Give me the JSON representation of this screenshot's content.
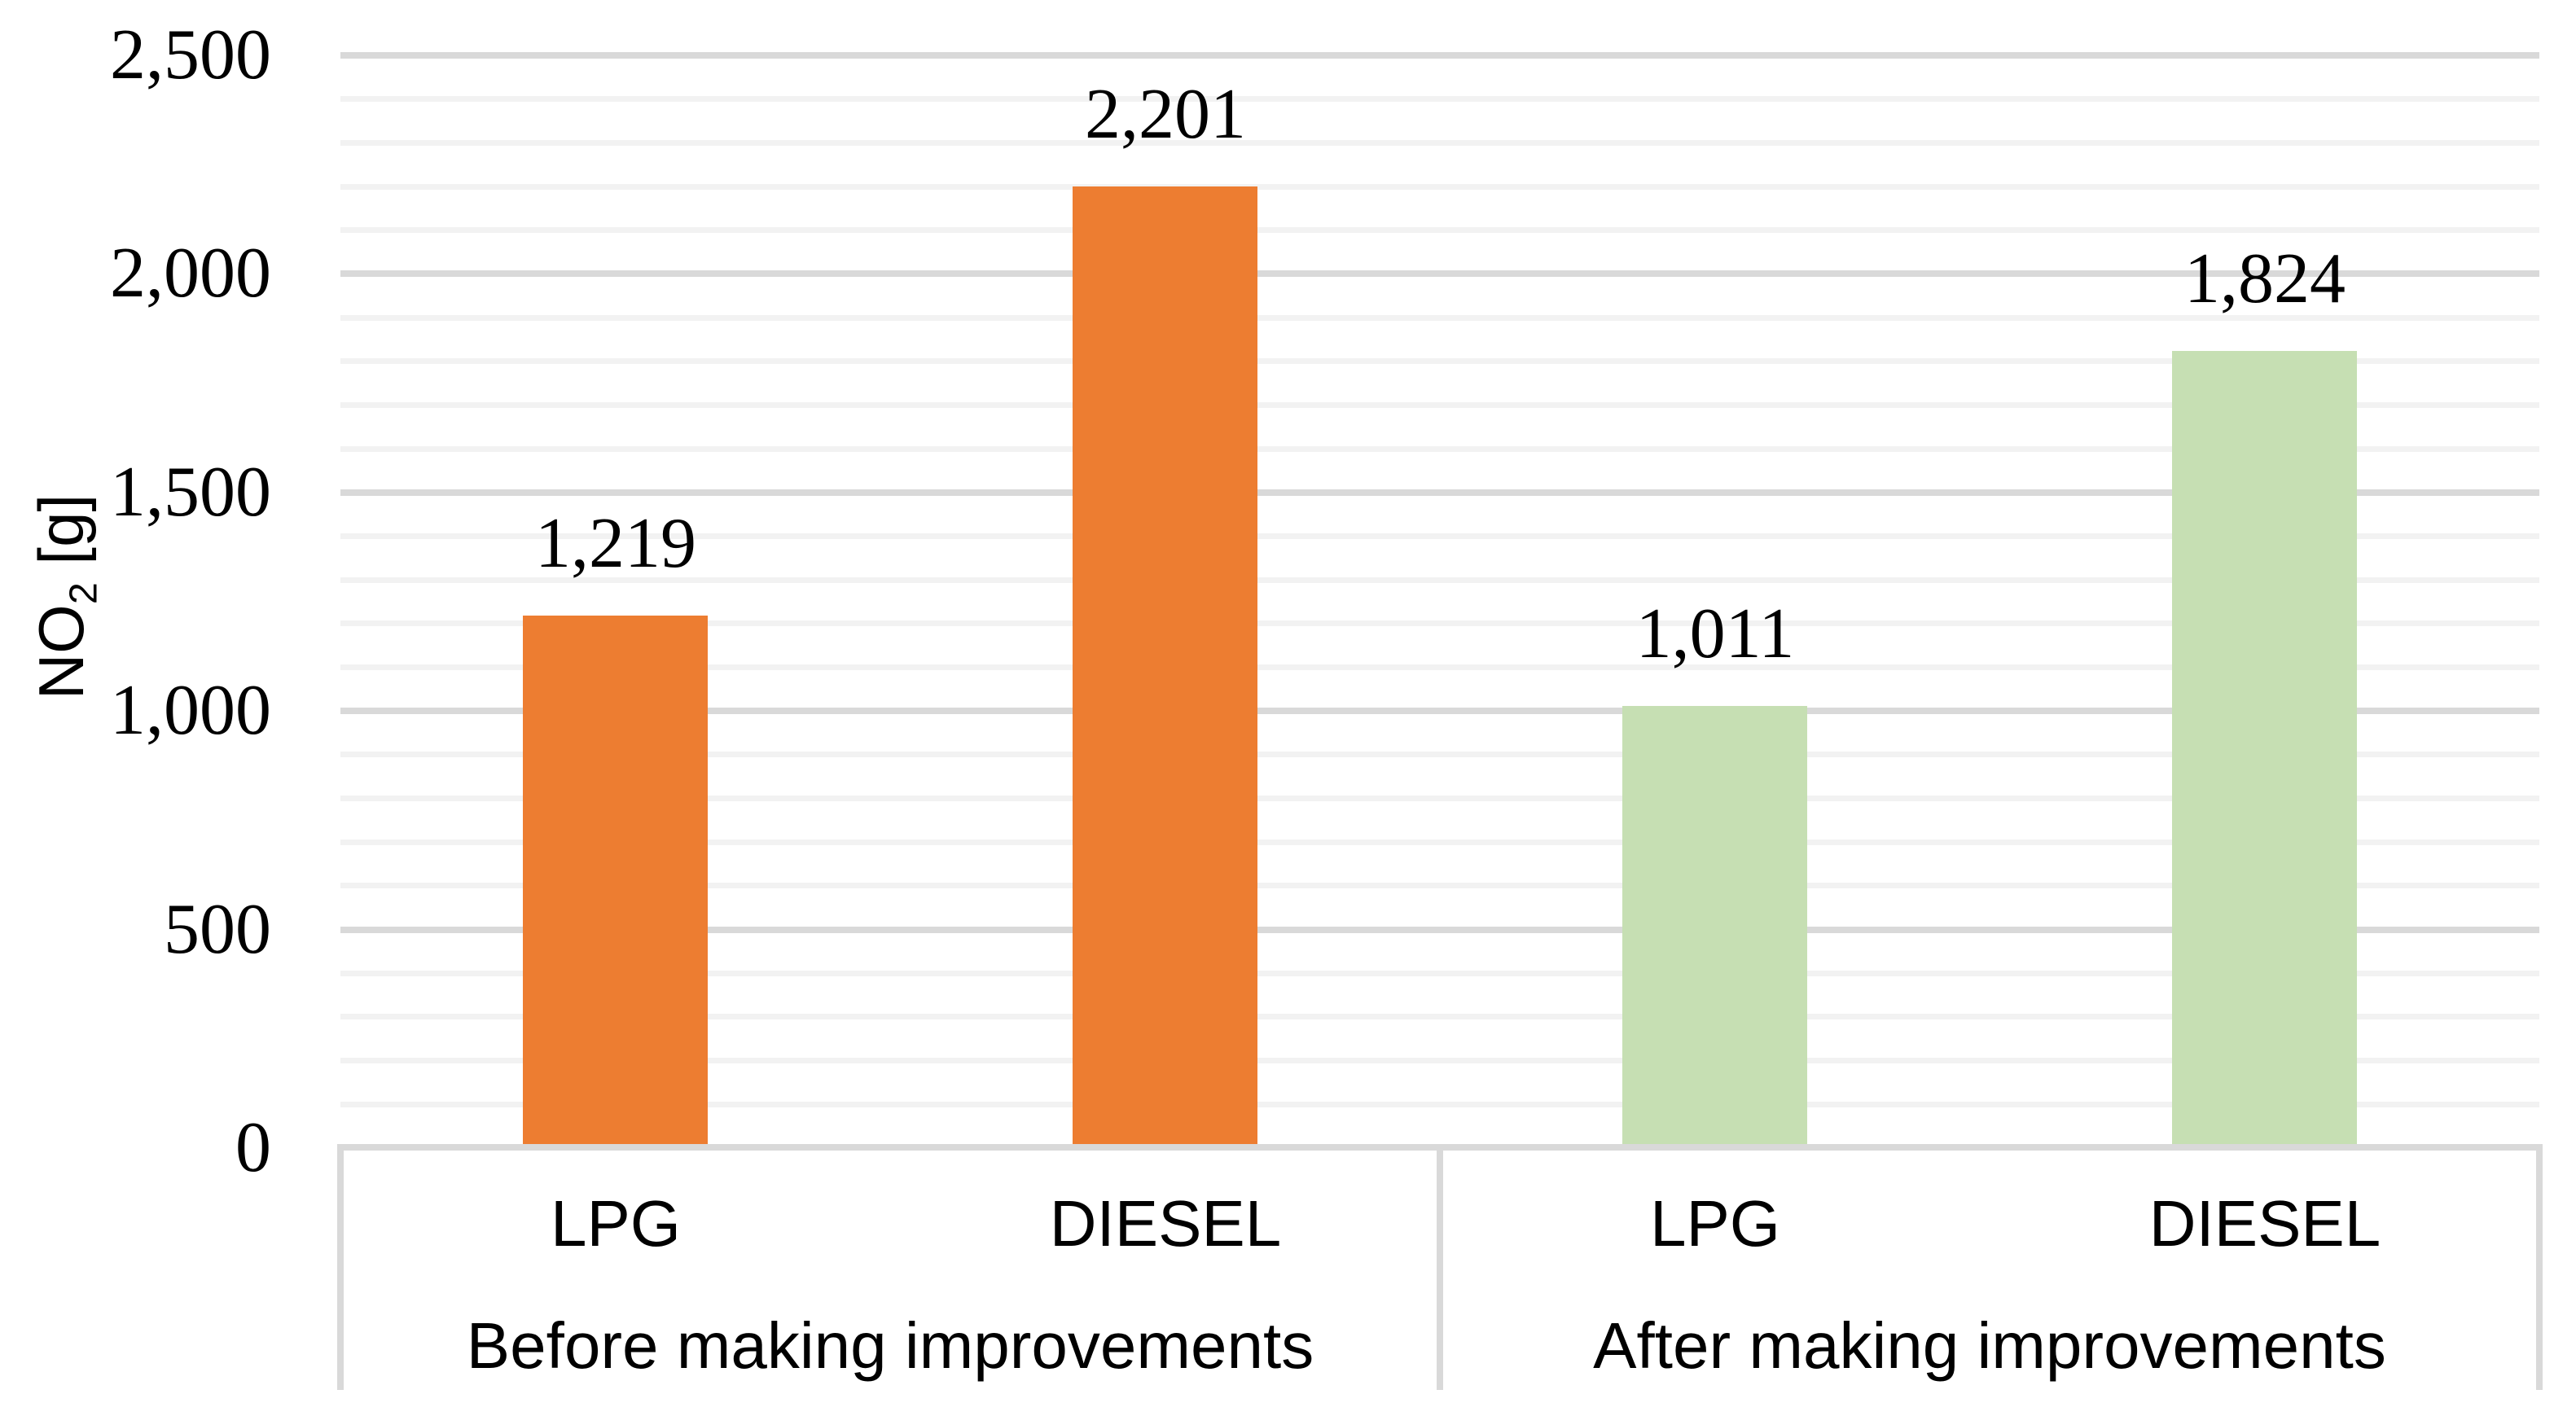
{
  "chart_data": {
    "type": "bar",
    "title": "",
    "ylabel": "NO₂ [g]",
    "ylabel_parts": {
      "main": "NO",
      "sub": "2",
      "unit": " [g]"
    },
    "xlabel": "",
    "y_axis": {
      "min": 0,
      "max": 2500,
      "major_step": 500,
      "minor_step": 100,
      "tick_labels": [
        {
          "value": 0,
          "label": "0"
        },
        {
          "value": 500,
          "label": "500"
        },
        {
          "value": 1000,
          "label": "1,000"
        },
        {
          "value": 1500,
          "label": "1,500"
        },
        {
          "value": 2000,
          "label": "2,000"
        },
        {
          "value": 2500,
          "label": "2,500"
        }
      ],
      "grid": "on"
    },
    "legend": "none",
    "groups": [
      {
        "label": "Before making improvements",
        "bar_color": "#ED7D31",
        "bars": [
          {
            "category": "LPG",
            "value": 1219,
            "data_label": "1,219"
          },
          {
            "category": "DIESEL",
            "value": 2201,
            "data_label": "2,201"
          }
        ]
      },
      {
        "label": "After making improvements",
        "bar_color": "#C6DFB3",
        "bars": [
          {
            "category": "LPG",
            "value": 1011,
            "data_label": "1,011"
          },
          {
            "category": "DIESEL",
            "value": 1824,
            "data_label": "1,824"
          }
        ]
      }
    ],
    "colors": {
      "major_gridline": "#D9D9D9",
      "minor_gridline": "#F2F2F2",
      "axis_line": "#D9D9D9",
      "category_separator": "#D9D9D9",
      "text": "#000000",
      "background": "#FFFFFF"
    }
  }
}
